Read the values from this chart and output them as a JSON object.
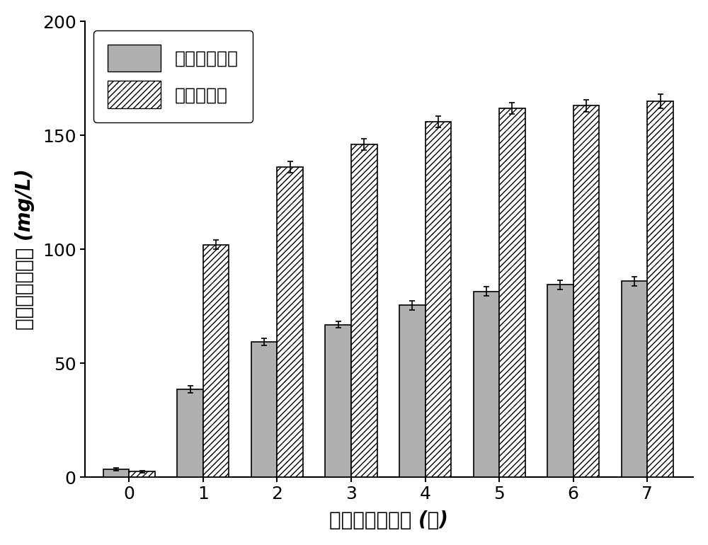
{
  "days": [
    0,
    1,
    2,
    3,
    4,
    5,
    6,
    7
  ],
  "control_values": [
    3.5,
    38.5,
    59.5,
    67.0,
    75.5,
    81.5,
    84.5,
    86.0
  ],
  "control_errors": [
    0.5,
    1.5,
    1.5,
    1.5,
    2.0,
    2.0,
    2.0,
    2.0
  ],
  "treatment_values": [
    2.5,
    102.0,
    136.0,
    146.0,
    156.0,
    162.0,
    163.0,
    165.0
  ],
  "treatment_errors": [
    0.5,
    2.0,
    2.5,
    2.5,
    2.5,
    2.5,
    2.5,
    3.0
  ],
  "bar_width": 0.35,
  "control_color": "#b0b0b0",
  "treatment_color": "#ffffff",
  "ylabel": "溶解性正磷浓度 (mg/L)",
  "xlabel": "厌氧共发酵时间 (天)",
  "ylim": [
    0,
    200
  ],
  "yticks": [
    0,
    50,
    100,
    150,
    200
  ],
  "legend_control": "未加蚕蛹粉组",
  "legend_treatment": "加蚕蛹粉组",
  "figsize": [
    10,
    7.7
  ],
  "dpi": 100
}
